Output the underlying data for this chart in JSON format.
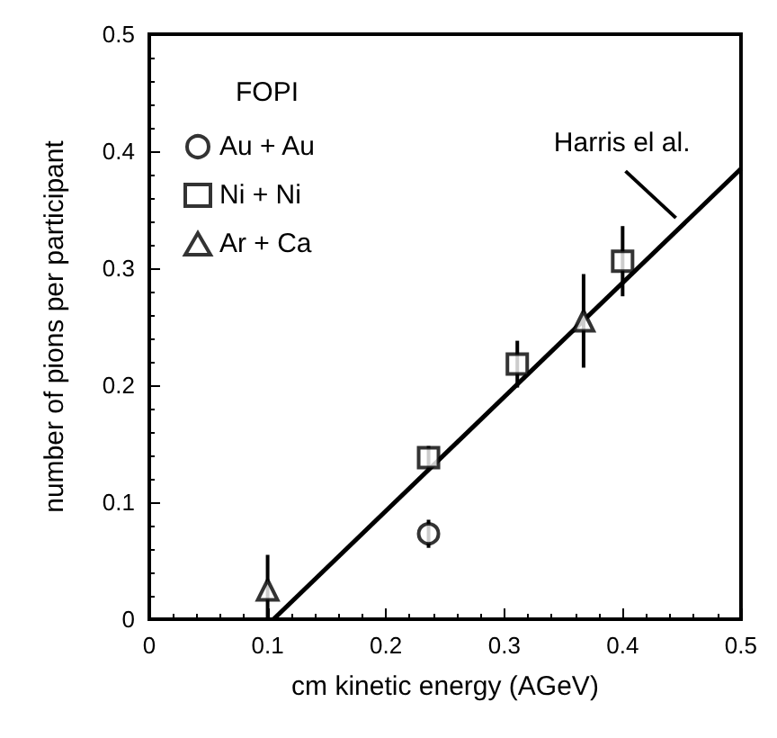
{
  "chart_data": {
    "type": "scatter",
    "xlabel": "cm kinetic energy (AGeV)",
    "ylabel": "number of pions per participant",
    "legend_title": "FOPI",
    "series": [
      {
        "name": "Au + Au",
        "color": "#000000",
        "marker": "circle",
        "x": [
          0.236
        ],
        "values": [
          0.073
        ],
        "errors": [
          0.012
        ]
      },
      {
        "name": "Ni + Ni",
        "color": "#000000",
        "marker": "square",
        "x": [
          0.236,
          0.311,
          0.4
        ],
        "values": [
          0.138,
          0.218,
          0.306
        ],
        "errors": [
          0.01,
          0.02,
          0.03
        ]
      },
      {
        "name": "Ar + Ca",
        "color": "#000000",
        "marker": "triangle",
        "x": [
          0.1,
          0.367
        ],
        "values": [
          0.025,
          0.255
        ],
        "errors": [
          [
            0,
            0.055
          ],
          0.04
        ]
      },
      {
        "type": "line",
        "color": "#000000",
        "marker": "none",
        "x": [
          0.105,
          0.5
        ],
        "values": [
          0,
          0.385
        ]
      }
    ],
    "annotations": [
      {
        "text": "Harris el al.",
        "x": 0.445,
        "y": 0.343
      }
    ],
    "xlim": [
      0,
      0.5
    ],
    "ylim": [
      0,
      0.5
    ],
    "xticks": [
      0,
      0.1,
      0.2,
      0.3,
      0.4,
      0.5
    ],
    "yticks": [
      0,
      0.1,
      0.2,
      0.3,
      0.4,
      0.5
    ],
    "grid": false,
    "legend": "top left"
  }
}
